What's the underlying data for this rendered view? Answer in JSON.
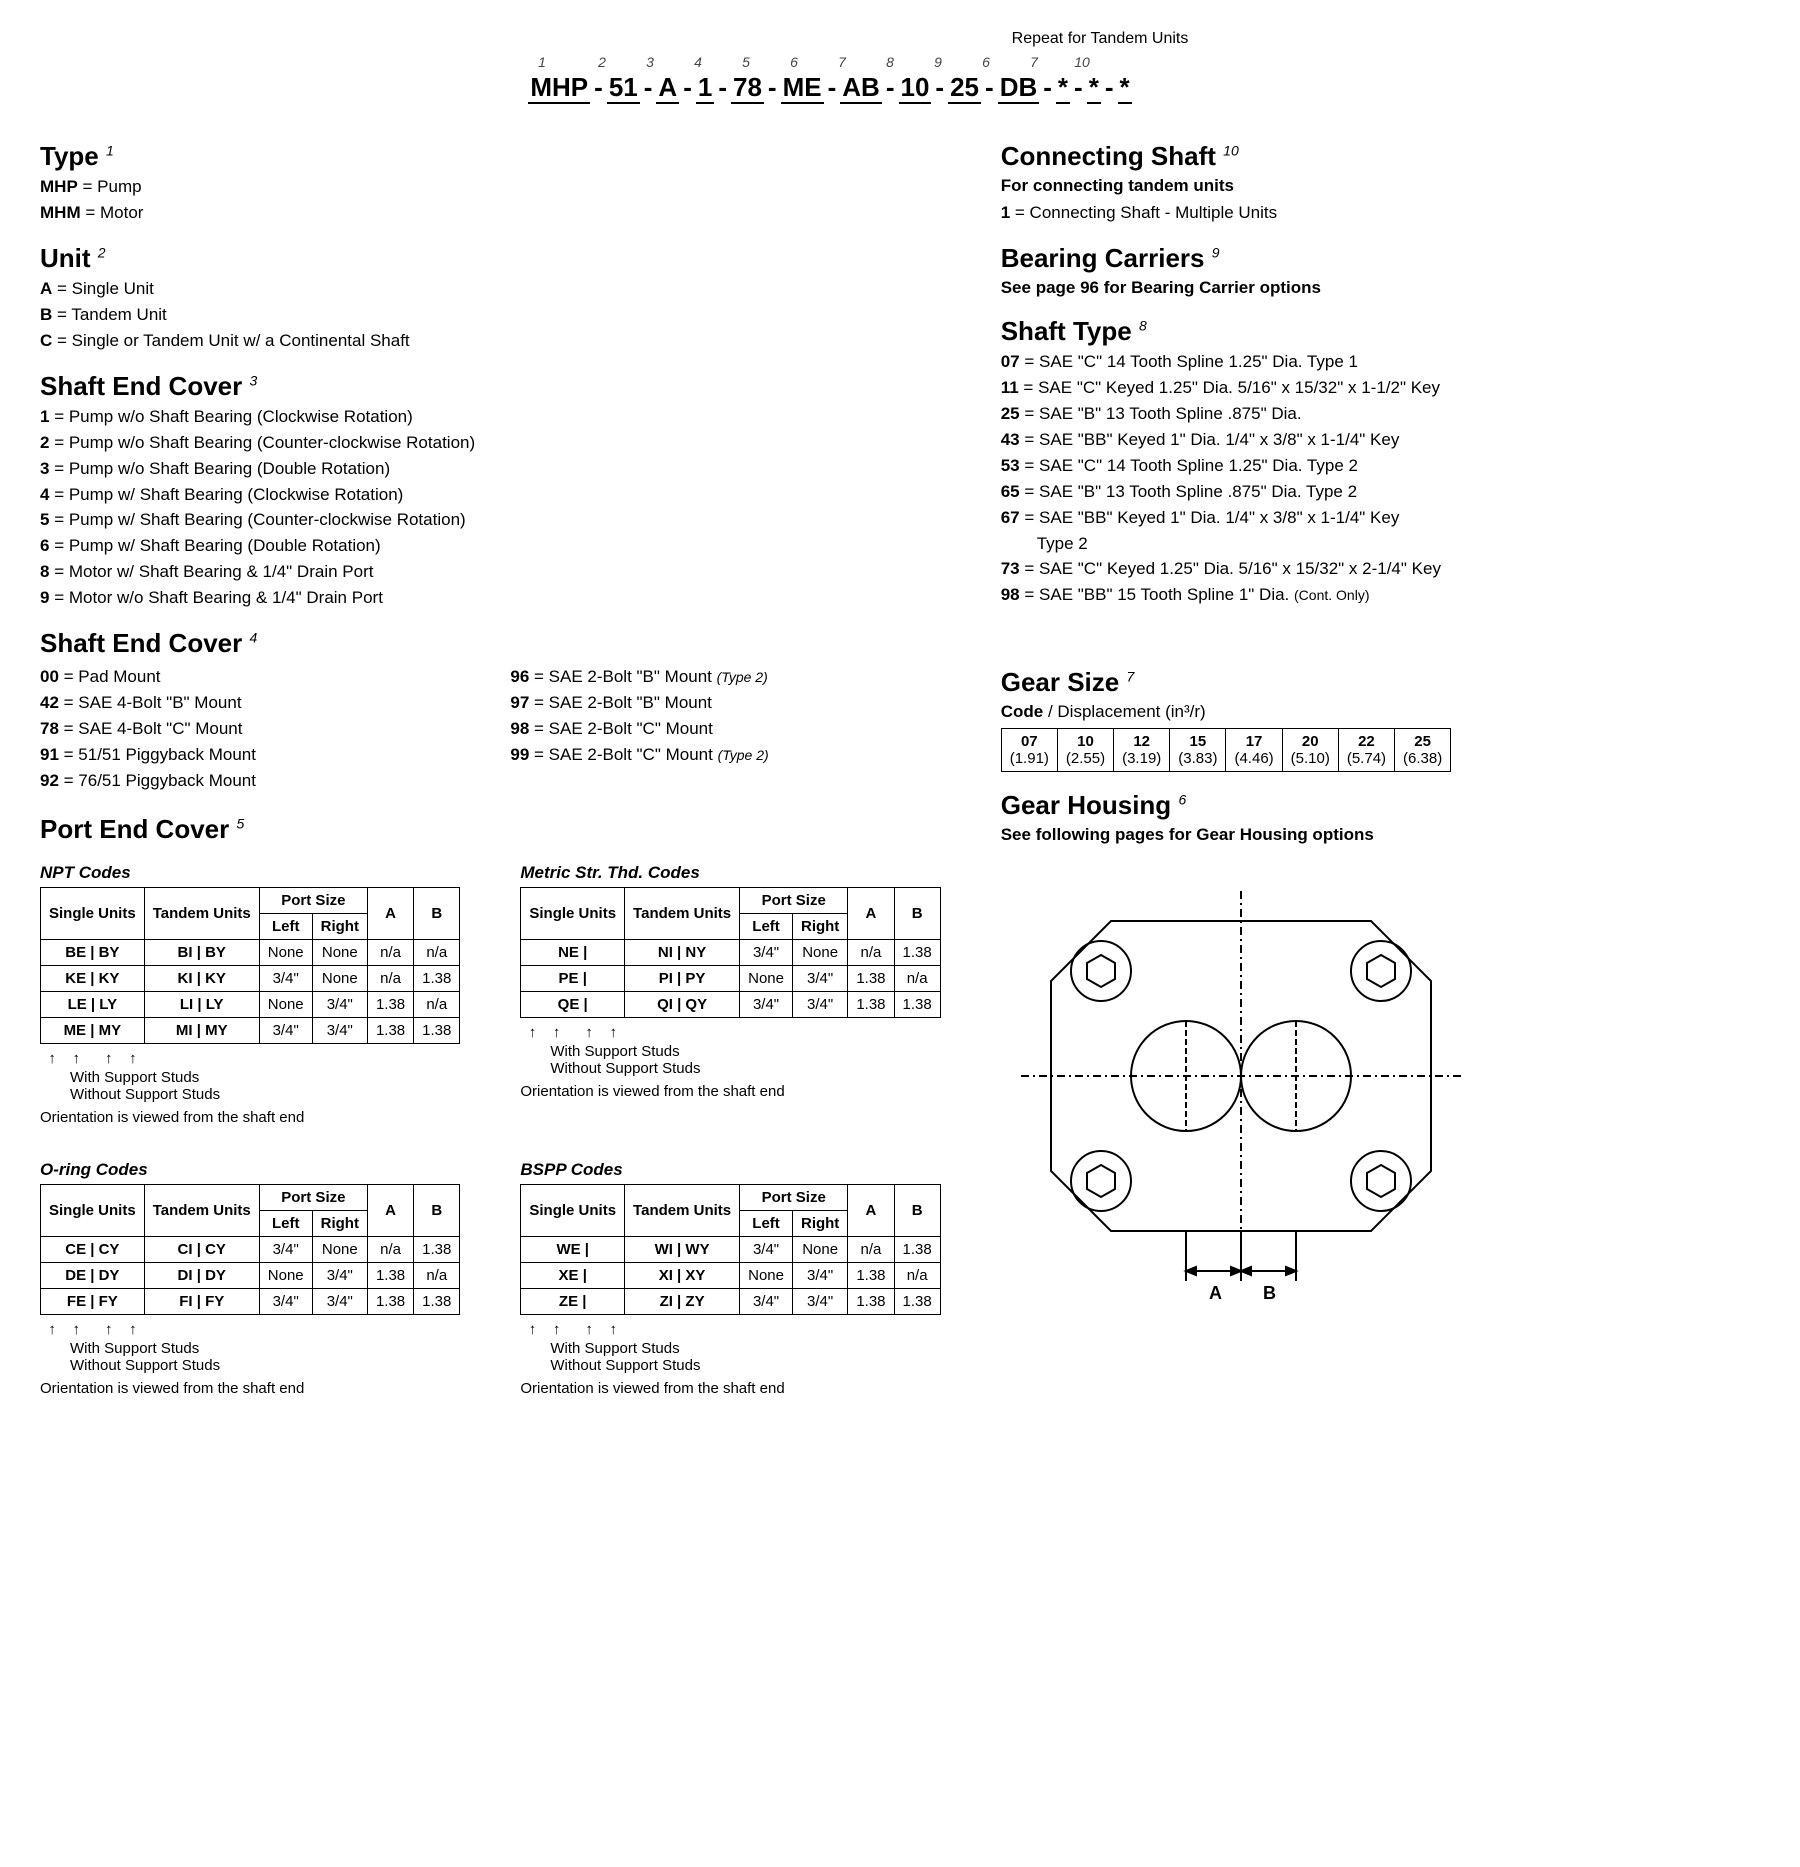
{
  "tandem_repeat_label": "Repeat for Tandem Units",
  "model_code": {
    "segments": [
      {
        "idx": "1",
        "val": "MHP"
      },
      {
        "idx": "2",
        "val": "51"
      },
      {
        "idx": "3",
        "val": "A"
      },
      {
        "idx": "4",
        "val": "1"
      },
      {
        "idx": "5",
        "val": "78"
      },
      {
        "idx": "6",
        "val": "ME"
      },
      {
        "idx": "7",
        "val": "AB"
      },
      {
        "idx": "8",
        "val": "10"
      },
      {
        "idx": "9",
        "val": "25"
      },
      {
        "idx": "6b",
        "val": "DB",
        "sup": "6"
      },
      {
        "idx": "7b",
        "val": "*",
        "sup": "7"
      },
      {
        "idx": "10",
        "val": "*",
        "sup": "10"
      },
      {
        "idx": "ex",
        "val": "*"
      }
    ]
  },
  "type": {
    "title": "Type",
    "sup": "1",
    "options": [
      {
        "code": "MHP",
        "desc": "= Pump"
      },
      {
        "code": "MHM",
        "desc": "= Motor"
      }
    ]
  },
  "unit": {
    "title": "Unit",
    "sup": "2",
    "options": [
      {
        "code": "A",
        "desc": "= Single Unit"
      },
      {
        "code": "B",
        "desc": "= Tandem Unit"
      },
      {
        "code": "C",
        "desc": "= Single or Tandem Unit w/ a Continental Shaft"
      }
    ]
  },
  "shaft_end_cover_3": {
    "title": "Shaft End Cover",
    "sup": "3",
    "options": [
      {
        "code": "1",
        "desc": "= Pump w/o Shaft Bearing (Clockwise Rotation)"
      },
      {
        "code": "2",
        "desc": "= Pump w/o Shaft Bearing (Counter-clockwise Rotation)"
      },
      {
        "code": "3",
        "desc": "= Pump w/o Shaft Bearing (Double Rotation)"
      },
      {
        "code": "4",
        "desc": "= Pump w/ Shaft Bearing (Clockwise Rotation)"
      },
      {
        "code": "5",
        "desc": "= Pump w/ Shaft Bearing (Counter-clockwise Rotation)"
      },
      {
        "code": "6",
        "desc": "= Pump w/ Shaft Bearing (Double Rotation)"
      },
      {
        "code": "8",
        "desc": "= Motor w/ Shaft Bearing & 1/4\" Drain Port"
      },
      {
        "code": "9",
        "desc": "= Motor w/o Shaft Bearing & 1/4\" Drain Port"
      }
    ]
  },
  "shaft_end_cover_4": {
    "title": "Shaft End Cover",
    "sup": "4",
    "left": [
      {
        "code": "00",
        "desc": "= Pad Mount"
      },
      {
        "code": "42",
        "desc": "= SAE 4-Bolt \"B\" Mount"
      },
      {
        "code": "78",
        "desc": "= SAE 4-Bolt \"C\" Mount"
      },
      {
        "code": "91",
        "desc": "= 51/51 Piggyback Mount"
      },
      {
        "code": "92",
        "desc": "= 76/51 Piggyback Mount"
      }
    ],
    "right": [
      {
        "code": "96",
        "desc": "= SAE 2-Bolt \"B\" Mount",
        "note": "(Type 2)"
      },
      {
        "code": "97",
        "desc": "= SAE 2-Bolt \"B\" Mount"
      },
      {
        "code": "98",
        "desc": "= SAE 2-Bolt \"C\" Mount"
      },
      {
        "code": "99",
        "desc": "= SAE 2-Bolt \"C\" Mount",
        "note": "(Type 2)"
      }
    ]
  },
  "port_end_cover": {
    "title": "Port End Cover",
    "sup": "5",
    "headers": {
      "single": "Single Units",
      "tandem": "Tandem Units",
      "port_size": "Port Size",
      "left": "Left",
      "right": "Right",
      "a": "A",
      "b": "B"
    },
    "npt": {
      "title": "NPT Codes",
      "rows": [
        {
          "s": "BE | BY",
          "t": "BI | BY",
          "l": "None",
          "r": "None",
          "a": "n/a",
          "b": "n/a"
        },
        {
          "s": "KE | KY",
          "t": "KI | KY",
          "l": "3/4\"",
          "r": "None",
          "a": "n/a",
          "b": "1.38"
        },
        {
          "s": "LE | LY",
          "t": "LI | LY",
          "l": "None",
          "r": "3/4\"",
          "a": "1.38",
          "b": "n/a"
        },
        {
          "s": "ME | MY",
          "t": "MI | MY",
          "l": "3/4\"",
          "r": "3/4\"",
          "a": "1.38",
          "b": "1.38"
        }
      ]
    },
    "metric": {
      "title": "Metric Str. Thd. Codes",
      "rows": [
        {
          "s": "NE |",
          "t": "NI | NY",
          "l": "3/4\"",
          "r": "None",
          "a": "n/a",
          "b": "1.38"
        },
        {
          "s": "PE |",
          "t": "PI | PY",
          "l": "None",
          "r": "3/4\"",
          "a": "1.38",
          "b": "n/a"
        },
        {
          "s": "QE |",
          "t": "QI | QY",
          "l": "3/4\"",
          "r": "3/4\"",
          "a": "1.38",
          "b": "1.38"
        }
      ]
    },
    "oring": {
      "title": "O-ring Codes",
      "rows": [
        {
          "s": "CE | CY",
          "t": "CI | CY",
          "l": "3/4\"",
          "r": "None",
          "a": "n/a",
          "b": "1.38"
        },
        {
          "s": "DE | DY",
          "t": "DI | DY",
          "l": "None",
          "r": "3/4\"",
          "a": "1.38",
          "b": "n/a"
        },
        {
          "s": "FE | FY",
          "t": "FI | FY",
          "l": "3/4\"",
          "r": "3/4\"",
          "a": "1.38",
          "b": "1.38"
        }
      ]
    },
    "bspp": {
      "title": "BSPP Codes",
      "rows": [
        {
          "s": "WE |",
          "t": "WI | WY",
          "l": "3/4\"",
          "r": "None",
          "a": "n/a",
          "b": "1.38"
        },
        {
          "s": "XE |",
          "t": "XI | XY",
          "l": "None",
          "r": "3/4\"",
          "a": "1.38",
          "b": "n/a"
        },
        {
          "s": "ZE |",
          "t": "ZI | ZY",
          "l": "3/4\"",
          "r": "3/4\"",
          "a": "1.38",
          "b": "1.38"
        }
      ]
    },
    "stud_note_with": "With Support Studs",
    "stud_note_without": "Without Support Studs",
    "orientation_note": "Orientation is viewed from the shaft end"
  },
  "connecting_shaft": {
    "title": "Connecting Shaft",
    "sup": "10",
    "subnote": "For connecting tandem units",
    "options": [
      {
        "code": "1",
        "desc": "= Connecting Shaft - Multiple Units"
      }
    ]
  },
  "bearing_carriers": {
    "title": "Bearing Carriers",
    "sup": "9",
    "subnote": "See page 96 for Bearing Carrier options"
  },
  "shaft_type": {
    "title": "Shaft Type",
    "sup": "8",
    "options": [
      {
        "code": "07",
        "desc": "= SAE \"C\" 14 Tooth Spline 1.25\" Dia. Type 1"
      },
      {
        "code": "11",
        "desc": "= SAE \"C\" Keyed 1.25\" Dia. 5/16\" x 15/32\" x 1-1/2\" Key"
      },
      {
        "code": "25",
        "desc": "= SAE \"B\" 13 Tooth Spline .875\" Dia."
      },
      {
        "code": "43",
        "desc": "= SAE \"BB\" Keyed 1\" Dia. 1/4\" x 3/8\" x 1-1/4\" Key"
      },
      {
        "code": "53",
        "desc": "= SAE \"C\" 14 Tooth Spline 1.25\" Dia. Type 2"
      },
      {
        "code": "65",
        "desc": "= SAE \"B\" 13 Tooth Spline .875\" Dia. Type 2"
      },
      {
        "code": "67",
        "desc": "= SAE \"BB\" Keyed 1\" Dia. 1/4\" x 3/8\" x 1-1/4\" Key",
        "extra": "Type 2"
      },
      {
        "code": "73",
        "desc": "= SAE \"C\" Keyed 1.25\" Dia. 5/16\" x 15/32\" x 2-1/4\" Key"
      },
      {
        "code": "98",
        "desc": "= SAE \"BB\" 15 Tooth Spline 1\" Dia.",
        "small": "(Cont. Only)"
      }
    ]
  },
  "gear_size": {
    "title": "Gear Size",
    "sup": "7",
    "label_code": "Code",
    "label_disp": " / Displacement (in³/r)",
    "cells": [
      {
        "c": "07",
        "d": "(1.91)"
      },
      {
        "c": "10",
        "d": "(2.55)"
      },
      {
        "c": "12",
        "d": "(3.19)"
      },
      {
        "c": "15",
        "d": "(3.83)"
      },
      {
        "c": "17",
        "d": "(4.46)"
      },
      {
        "c": "20",
        "d": "(5.10)"
      },
      {
        "c": "22",
        "d": "(5.74)"
      },
      {
        "c": "25",
        "d": "(6.38)"
      }
    ]
  },
  "gear_housing": {
    "title": "Gear Housing",
    "sup": "6",
    "subnote": "See following pages for Gear Housing options",
    "dim_a": "A",
    "dim_b": "B"
  }
}
